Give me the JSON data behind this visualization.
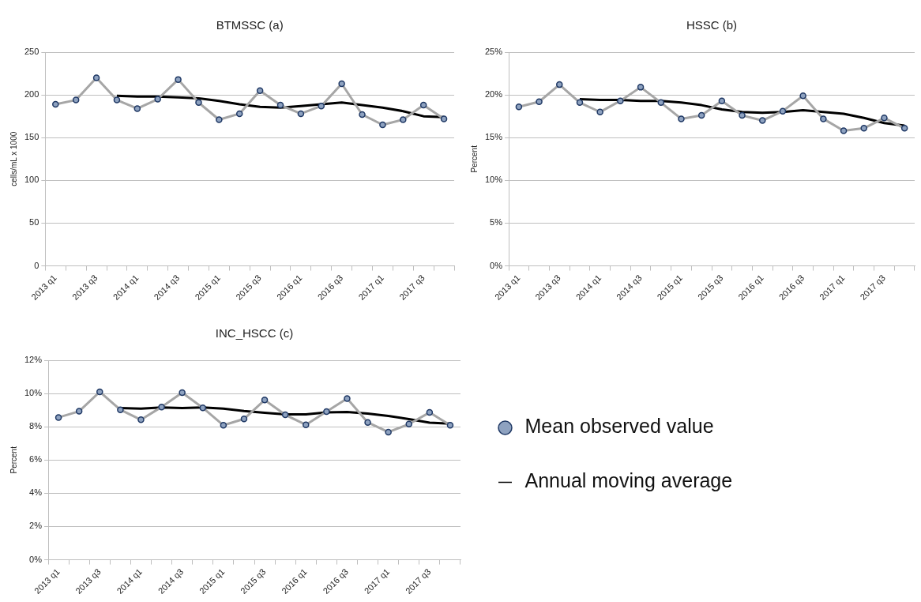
{
  "chart_data": [
    {
      "type": "line",
      "title": "BTMSSC (a)",
      "ylabel": "cells/mL x 1000",
      "categories": [
        "2013 q1",
        null,
        "2013 q3",
        null,
        "2014 q1",
        null,
        "2014 q3",
        null,
        "2015 q1",
        null,
        "2015 q3",
        null,
        "2016 q1",
        null,
        "2016 q3",
        null,
        "2017 q1",
        null,
        "2017 q3",
        null
      ],
      "series": [
        {
          "color": "#a6a6a6",
          "marker": "circle",
          "values": [
            189,
            194,
            220,
            194,
            184,
            195,
            218,
            191,
            171,
            178,
            205,
            188,
            178,
            187,
            213,
            177,
            165,
            171,
            188,
            172
          ]
        },
        {
          "color": "#000000",
          "marker": "none",
          "values": [
            null,
            null,
            null,
            199,
            198,
            198,
            197,
            196,
            193,
            189,
            186,
            185,
            187,
            189,
            191,
            188,
            185,
            181,
            175,
            174
          ]
        }
      ],
      "ylim": [
        0,
        250
      ],
      "yticks": [
        0,
        50,
        100,
        150,
        200,
        250
      ],
      "grid": "y",
      "legend": false
    },
    {
      "type": "line",
      "title": "HSSC (b)",
      "ylabel": "Percent",
      "categories": [
        "2013 q1",
        null,
        "2013 q3",
        null,
        "2014 q1",
        null,
        "2014 q3",
        null,
        "2015 q1",
        null,
        "2015 q3",
        null,
        "2016 q1",
        null,
        "2016 q3",
        null,
        "2017 q1",
        null,
        "2017 q3",
        null
      ],
      "series": [
        {
          "color": "#a6a6a6",
          "marker": "circle",
          "values": [
            18.6,
            19.2,
            21.2,
            19.1,
            18.0,
            19.3,
            20.9,
            19.1,
            17.2,
            17.6,
            19.3,
            17.6,
            17.0,
            18.1,
            19.9,
            17.2,
            15.8,
            16.1,
            17.3,
            16.1
          ]
        },
        {
          "color": "#000000",
          "marker": "none",
          "values": [
            null,
            null,
            null,
            19.5,
            19.4,
            19.4,
            19.3,
            19.3,
            19.1,
            18.8,
            18.3,
            18.0,
            17.9,
            18.0,
            18.2,
            18.0,
            17.8,
            17.3,
            16.7,
            16.4
          ]
        }
      ],
      "ylim": [
        0,
        25
      ],
      "yticks": [
        {
          "value": 0,
          "label": "0%"
        },
        {
          "value": 5,
          "label": "5%"
        },
        {
          "value": 10,
          "label": "10%"
        },
        {
          "value": 15,
          "label": "15%"
        },
        {
          "value": 20,
          "label": "20%"
        },
        {
          "value": 25,
          "label": "25%"
        }
      ],
      "grid": "y",
      "legend": false
    },
    {
      "type": "line",
      "title": "INC_HSCC (c)",
      "ylabel": "Percent",
      "categories": [
        "2013 q1",
        null,
        "2013 q3",
        null,
        "2014 q1",
        null,
        "2014 q3",
        null,
        "2015 q1",
        null,
        "2015 q3",
        null,
        "2016 q1",
        null,
        "2016 q3",
        null,
        "2017 q1",
        null,
        "2017 q3",
        null
      ],
      "series": [
        {
          "name": "Mean observed value",
          "color": "#a6a6a6",
          "marker": "circle",
          "values": [
            8.56,
            8.93,
            10.1,
            9.02,
            8.42,
            9.19,
            10.05,
            9.14,
            8.09,
            8.47,
            9.61,
            8.72,
            8.12,
            8.91,
            9.7,
            8.26,
            7.68,
            8.16,
            8.86,
            8.09
          ]
        },
        {
          "name": "Annual moving average",
          "color": "#000000",
          "marker": "none",
          "values": [
            null,
            null,
            null,
            9.12,
            9.09,
            9.16,
            9.12,
            9.16,
            9.09,
            8.95,
            8.84,
            8.75,
            8.75,
            8.86,
            8.89,
            8.79,
            8.65,
            8.46,
            8.25,
            8.19
          ]
        }
      ],
      "ylim": [
        0,
        12
      ],
      "yticks": [
        {
          "value": 0,
          "label": "0%"
        },
        {
          "value": 2,
          "label": "2%"
        },
        {
          "value": 4,
          "label": "4%"
        },
        {
          "value": 6,
          "label": "6%"
        },
        {
          "value": 8,
          "label": "8%"
        },
        {
          "value": 10,
          "label": "10%"
        },
        {
          "value": 12,
          "label": "12%"
        }
      ],
      "grid": "y",
      "legend": "right"
    }
  ]
}
